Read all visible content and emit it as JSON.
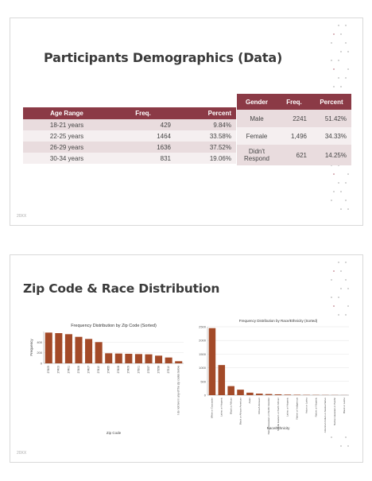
{
  "slide1": {
    "title": "Participants Demographics (Data)",
    "footer": "20XX",
    "age_table": {
      "headers": [
        "Age Range",
        "Freq.",
        "Percent"
      ],
      "rows": [
        [
          "18-21 years",
          "429",
          "9.84%"
        ],
        [
          "22-25 years",
          "1464",
          "33.58%"
        ],
        [
          "26-29 years",
          "1636",
          "37.52%"
        ],
        [
          "30-34 years",
          "831",
          "19.06%"
        ]
      ]
    },
    "gender_table": {
      "headers": [
        "Gender",
        "Freq.",
        "Percent"
      ],
      "rows": [
        [
          "Male",
          "2241",
          "51.42%"
        ],
        [
          "Female",
          "1,496",
          "34.33%"
        ],
        [
          "Didn't Respond",
          "621",
          "14.25%"
        ]
      ]
    }
  },
  "slide2": {
    "title": "Zip Code & Race Distribution",
    "footer": "20XX"
  },
  "chart_data": [
    {
      "type": "bar",
      "title": "Frequency Distribution by Zip Code (Sorted)",
      "xlabel": "Zip Code",
      "ylabel": "Frequency",
      "categories": [
        "27405",
        "27403",
        "27401",
        "27406",
        "27407",
        "27410",
        "27455",
        "27408",
        "27409",
        "27301",
        "27357",
        "27358",
        "27310",
        "I do not live in any of the zip codes below"
      ],
      "values": [
        580,
        570,
        550,
        500,
        460,
        400,
        190,
        185,
        180,
        175,
        170,
        145,
        110,
        40
      ],
      "ylim": [
        0,
        600
      ],
      "yticks": [
        "0",
        "200",
        "400"
      ],
      "color": "#a34a28"
    },
    {
      "type": "bar",
      "title": "Frequency Distribution by Race/Ethnicity (Sorted)",
      "xlabel": "Race/Ethnicity",
      "ylabel": "",
      "categories": [
        "White or Caucasian",
        "Latino or Hispanic",
        "Black or African",
        "Black or African American",
        "Asian",
        "Other/Unknown",
        "Native Hawaiian or Pacific Islander",
        "Middle Eastern or North African",
        "Latino or Hispanic",
        "Native or Indigenous",
        "Asian or Latino",
        "Native or Hispanic",
        "American Indian or Alaska Native",
        "Native Hawaiian or Pacific",
        "Black or Latino"
      ],
      "values": [
        2450,
        1100,
        330,
        200,
        90,
        55,
        40,
        30,
        20,
        15,
        10,
        8,
        6,
        5,
        3
      ],
      "ylim": [
        0,
        2500
      ],
      "yticks": [
        "0",
        "500",
        "1000",
        "1500",
        "2000",
        "2500"
      ],
      "color": "#a34a28"
    }
  ],
  "colors": {
    "header": "#8b3a46",
    "row_odd": "#e9dcde",
    "row_even": "#f5eff0",
    "bar": "#a34a28"
  }
}
